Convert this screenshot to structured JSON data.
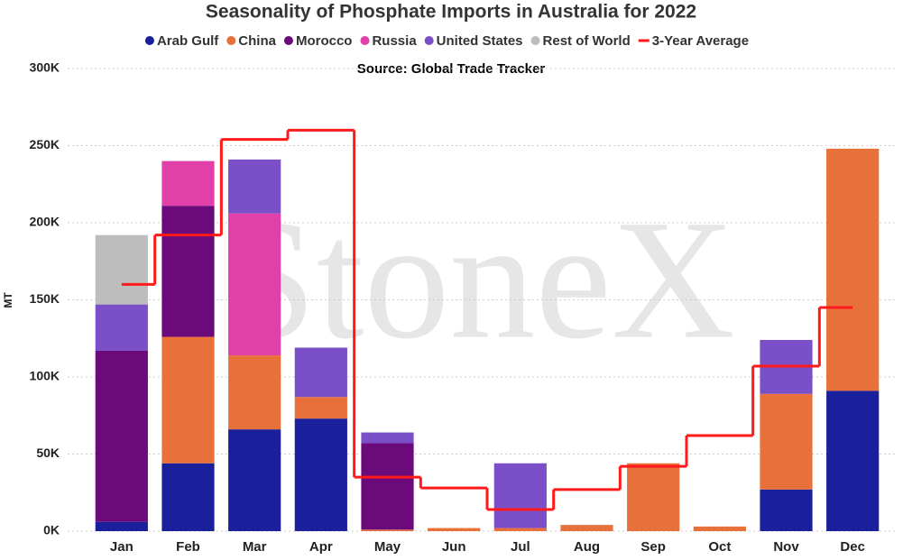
{
  "chart_data": {
    "type": "bar",
    "stacked": true,
    "title": "Seasonality of Phosphate Imports in Australia for 2022",
    "subtitle": "Source: Global Trade Tracker",
    "watermark": "StoneX",
    "y_label": "MT",
    "categories": [
      "Jan",
      "Feb",
      "Mar",
      "Apr",
      "May",
      "Jun",
      "Jul",
      "Aug",
      "Sep",
      "Oct",
      "Nov",
      "Dec"
    ],
    "series": [
      {
        "name": "Arab Gulf",
        "color": "#1a1f9c",
        "values": [
          6,
          44,
          66,
          73,
          0,
          0,
          0,
          0,
          0,
          0,
          27,
          91
        ]
      },
      {
        "name": "China",
        "color": "#e8703a",
        "values": [
          0,
          82,
          48,
          14,
          1,
          2,
          2,
          4,
          44,
          3,
          62,
          157
        ]
      },
      {
        "name": "Morocco",
        "color": "#6b0a7a",
        "values": [
          111,
          85,
          0,
          0,
          56,
          0,
          0,
          0,
          0,
          0,
          0,
          0
        ]
      },
      {
        "name": "Russia",
        "color": "#e040a8",
        "values": [
          0,
          29,
          92,
          0,
          0,
          0,
          0,
          0,
          0,
          0,
          0,
          0
        ]
      },
      {
        "name": "United States",
        "color": "#7b4fc8",
        "values": [
          30,
          0,
          35,
          32,
          7,
          0,
          42,
          0,
          0,
          0,
          35,
          0
        ]
      },
      {
        "name": "Rest of World",
        "color": "#bdbdbd",
        "values": [
          45,
          0,
          0,
          0,
          0,
          0,
          0,
          0,
          0,
          0,
          0,
          0
        ]
      },
      {
        "name": "3-Year Average",
        "color": "#ff1a1a",
        "type": "step",
        "values": [
          160,
          192,
          254,
          260,
          35,
          28,
          14,
          27,
          42,
          62,
          107,
          145
        ]
      }
    ],
    "ylim": [
      0,
      300
    ],
    "yticks": [
      {
        "value": 0,
        "label": "0K"
      },
      {
        "value": 50,
        "label": "50K"
      },
      {
        "value": 100,
        "label": "100K"
      },
      {
        "value": 150,
        "label": "150K"
      },
      {
        "value": 200,
        "label": "200K"
      },
      {
        "value": 250,
        "label": "250K"
      },
      {
        "value": 300,
        "label": "300K"
      }
    ],
    "grid": true
  }
}
